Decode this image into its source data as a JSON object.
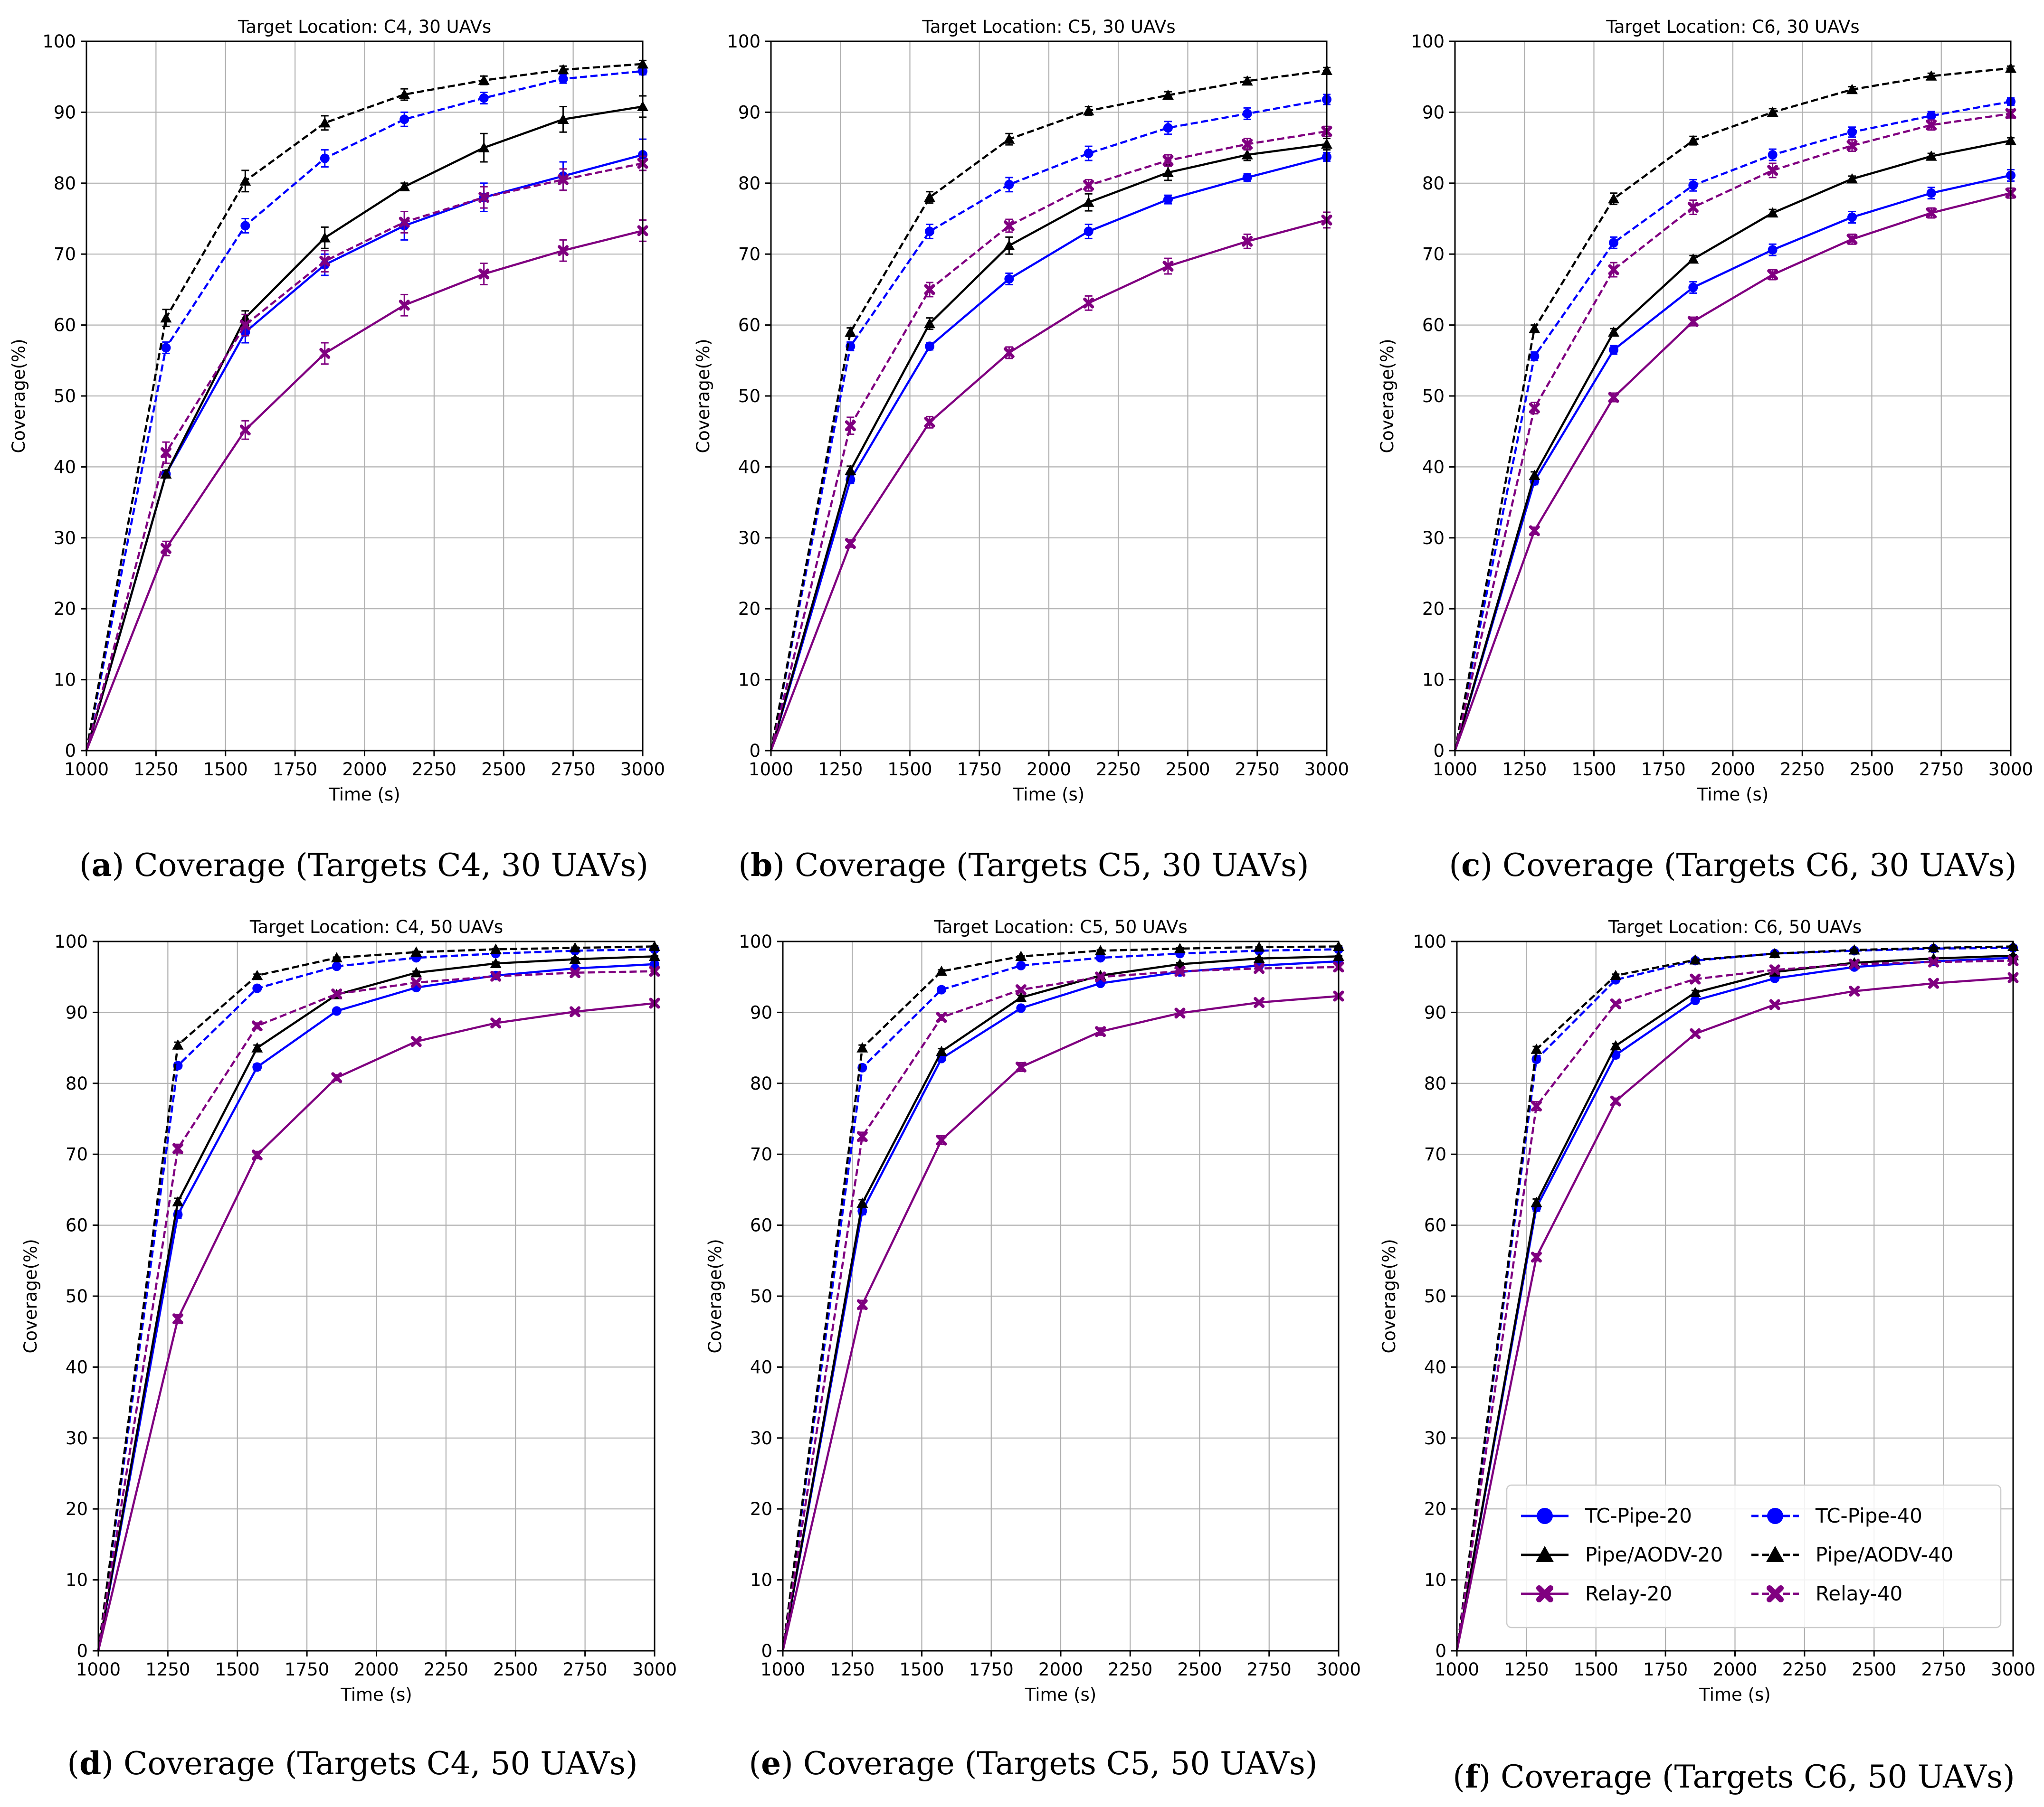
{
  "figure": {
    "legend_panel": 5,
    "panels": [
      {
        "label": "a",
        "caption_text": "Coverage (Targets C4, 30 UAVs)"
      },
      {
        "label": "b",
        "caption_text": "Coverage (Targets C5, 30 UAVs)"
      },
      {
        "label": "c",
        "caption_text": "Coverage (Targets C6, 30 UAVs)"
      },
      {
        "label": "d",
        "caption_text": "Coverage (Targets C4, 50 UAVs)"
      },
      {
        "label": "e",
        "caption_text": "Coverage (Targets C5, 50 UAVs)"
      },
      {
        "label": "f",
        "caption_text": "Coverage (Targets C6, 50 UAVs)"
      }
    ],
    "legend": [
      {
        "name": "TC-Pipe-20",
        "color": "#0000ff",
        "dash": "solid",
        "marker": "circle"
      },
      {
        "name": "TC-Pipe-40",
        "color": "#0000ff",
        "dash": "dashed",
        "marker": "circle"
      },
      {
        "name": "Pipe/AODV-20",
        "color": "#000000",
        "dash": "solid",
        "marker": "triangle"
      },
      {
        "name": "Pipe/AODV-40",
        "color": "#000000",
        "dash": "dashed",
        "marker": "triangle"
      },
      {
        "name": "Relay-20",
        "color": "#800080",
        "dash": "solid",
        "marker": "x"
      },
      {
        "name": "Relay-40",
        "color": "#800080",
        "dash": "dashed",
        "marker": "x"
      }
    ]
  },
  "chart_data": [
    {
      "type": "line",
      "title": "Target Location: C4, 30 UAVs",
      "xlabel": "Time (s)",
      "ylabel": "Coverage(%)",
      "xlim": [
        1000,
        3000
      ],
      "ylim": [
        0,
        100
      ],
      "xticks": [
        1000,
        1250,
        1500,
        1750,
        2000,
        2250,
        2500,
        2750,
        3000
      ],
      "yticks": [
        0,
        10,
        20,
        30,
        40,
        50,
        60,
        70,
        80,
        90,
        100
      ],
      "grid": true,
      "x": [
        1000,
        1286,
        1571,
        1857,
        2143,
        2429,
        2714,
        3000
      ],
      "series": [
        {
          "name": "TC-Pipe-20",
          "values": [
            0,
            39,
            59,
            68.5,
            74,
            78,
            81,
            84
          ],
          "err": [
            0,
            0.5,
            1.5,
            1.5,
            2,
            2,
            2,
            2.2
          ]
        },
        {
          "name": "TC-Pipe-40",
          "values": [
            0,
            56.8,
            74,
            83.5,
            89,
            92,
            94.7,
            95.8
          ],
          "err": [
            0,
            0.8,
            1,
            1.2,
            1,
            0.8,
            0.6,
            0.5
          ]
        },
        {
          "name": "Pipe/AODV-20",
          "values": [
            0,
            39,
            61,
            72.3,
            79.5,
            85,
            89,
            90.8
          ],
          "err": [
            0,
            0.5,
            1,
            1.5,
            0.5,
            2,
            1.8,
            1.5
          ]
        },
        {
          "name": "Pipe/AODV-40",
          "values": [
            0,
            61,
            80.3,
            88.5,
            92.5,
            94.5,
            96,
            96.8
          ],
          "err": [
            0,
            1.2,
            1.5,
            1,
            0.8,
            0.6,
            0.5,
            0.5
          ]
        },
        {
          "name": "Relay-20",
          "values": [
            0,
            28.5,
            45.2,
            56,
            62.8,
            67.2,
            70.5,
            73.3
          ],
          "err": [
            0,
            1,
            1.3,
            1.5,
            1.5,
            1.5,
            1.5,
            1.5
          ]
        },
        {
          "name": "Relay-40",
          "values": [
            0,
            42,
            60,
            69,
            74.5,
            78,
            80.5,
            82.8
          ],
          "err": [
            0,
            1.5,
            1.5,
            1.5,
            1.5,
            1.5,
            1.5,
            1
          ]
        }
      ]
    },
    {
      "type": "line",
      "title": "Target Location: C5, 30 UAVs",
      "xlabel": "Time (s)",
      "ylabel": "Coverage(%)",
      "xlim": [
        1000,
        3000
      ],
      "ylim": [
        0,
        100
      ],
      "xticks": [
        1000,
        1250,
        1500,
        1750,
        2000,
        2250,
        2500,
        2750,
        3000
      ],
      "yticks": [
        0,
        10,
        20,
        30,
        40,
        50,
        60,
        70,
        80,
        90,
        100
      ],
      "grid": true,
      "x": [
        1000,
        1286,
        1571,
        1857,
        2143,
        2429,
        2714,
        3000
      ],
      "series": [
        {
          "name": "TC-Pipe-20",
          "values": [
            0,
            38.2,
            57,
            66.5,
            73.2,
            77.7,
            80.8,
            83.7
          ],
          "err": [
            0,
            0.5,
            0.5,
            0.8,
            1,
            0.6,
            0.5,
            0.6
          ]
        },
        {
          "name": "TC-Pipe-40",
          "values": [
            0,
            57,
            73.2,
            79.8,
            84.2,
            87.8,
            89.8,
            91.8
          ],
          "err": [
            0,
            0.6,
            1,
            1,
            1,
            0.9,
            0.8,
            0.7
          ]
        },
        {
          "name": "Pipe/AODV-20",
          "values": [
            0,
            39.5,
            60.2,
            71.2,
            77.3,
            81.5,
            84,
            85.5
          ],
          "err": [
            0,
            0.6,
            0.8,
            1.2,
            1.2,
            1.1,
            0.8,
            0.8
          ]
        },
        {
          "name": "Pipe/AODV-40",
          "values": [
            0,
            59,
            78,
            86.2,
            90.2,
            92.4,
            94.4,
            95.9
          ],
          "err": [
            0,
            0.6,
            0.8,
            0.8,
            0.6,
            0.5,
            0.5,
            0.4
          ]
        },
        {
          "name": "Relay-20",
          "values": [
            0,
            29.2,
            46.3,
            56.1,
            63.1,
            68.3,
            71.8,
            74.8
          ],
          "err": [
            0,
            0.5,
            0.8,
            0.8,
            1,
            1.1,
            1,
            1.1
          ]
        },
        {
          "name": "Relay-40",
          "values": [
            0,
            45.8,
            65,
            74,
            79.7,
            83.2,
            85.5,
            87.3
          ],
          "err": [
            0,
            1.2,
            1,
            0.9,
            0.8,
            0.8,
            0.8,
            0.7
          ]
        }
      ]
    },
    {
      "type": "line",
      "title": "Target Location: C6, 30 UAVs",
      "xlabel": "Time (s)",
      "ylabel": "Coverage(%)",
      "xlim": [
        1000,
        3000
      ],
      "ylim": [
        0,
        100
      ],
      "xticks": [
        1000,
        1250,
        1500,
        1750,
        2000,
        2250,
        2500,
        2750,
        3000
      ],
      "yticks": [
        0,
        10,
        20,
        30,
        40,
        50,
        60,
        70,
        80,
        90,
        100
      ],
      "grid": true,
      "x": [
        1000,
        1286,
        1571,
        1857,
        2143,
        2429,
        2714,
        3000
      ],
      "series": [
        {
          "name": "TC-Pipe-20",
          "values": [
            0,
            38,
            56.5,
            65.3,
            70.6,
            75.2,
            78.6,
            81.1
          ],
          "err": [
            0,
            0.5,
            0.6,
            0.8,
            0.8,
            0.8,
            0.8,
            0.8
          ]
        },
        {
          "name": "TC-Pipe-40",
          "values": [
            0,
            55.6,
            71.6,
            79.7,
            84,
            87.2,
            89.5,
            91.5
          ],
          "err": [
            0,
            0.6,
            0.8,
            0.8,
            0.8,
            0.7,
            0.6,
            0.5
          ]
        },
        {
          "name": "Pipe/AODV-20",
          "values": [
            0,
            38.8,
            59,
            69.3,
            75.8,
            80.6,
            83.8,
            86
          ],
          "err": [
            0,
            0.5,
            0.5,
            0.5,
            0.5,
            0.4,
            0.4,
            0.4
          ]
        },
        {
          "name": "Pipe/AODV-40",
          "values": [
            0,
            59.5,
            77.8,
            86,
            90,
            93.2,
            95.1,
            96.2
          ],
          "err": [
            0,
            0.5,
            0.8,
            0.6,
            0.5,
            0.4,
            0.4,
            0.3
          ]
        },
        {
          "name": "Relay-20",
          "values": [
            0,
            31,
            49.8,
            60.5,
            67.1,
            72.1,
            75.8,
            78.6
          ],
          "err": [
            0,
            0.5,
            0.6,
            0.6,
            0.7,
            0.7,
            0.7,
            0.7
          ]
        },
        {
          "name": "Relay-40",
          "values": [
            0,
            48.3,
            67.8,
            76.6,
            81.8,
            85.3,
            88.2,
            89.8
          ],
          "err": [
            0,
            0.8,
            1,
            1,
            1,
            0.8,
            0.7,
            0.6
          ]
        }
      ]
    },
    {
      "type": "line",
      "title": "Target Location: C4, 50 UAVs",
      "xlabel": "Time (s)",
      "ylabel": "Coverage(%)",
      "xlim": [
        1000,
        3000
      ],
      "ylim": [
        0,
        100
      ],
      "xticks": [
        1000,
        1250,
        1500,
        1750,
        2000,
        2250,
        2500,
        2750,
        3000
      ],
      "yticks": [
        0,
        10,
        20,
        30,
        40,
        50,
        60,
        70,
        80,
        90,
        100
      ],
      "grid": true,
      "x": [
        1000,
        1286,
        1571,
        1857,
        2143,
        2429,
        2714,
        3000
      ],
      "series": [
        {
          "name": "TC-Pipe-20",
          "values": [
            0,
            61.5,
            82.3,
            90.2,
            93.5,
            95.2,
            96.2,
            96.8
          ],
          "err": [
            0,
            0.5,
            0.4,
            0.3,
            0.2,
            0.2,
            0.2,
            0.2
          ]
        },
        {
          "name": "TC-Pipe-40",
          "values": [
            0,
            82.5,
            93.4,
            96.5,
            97.7,
            98.3,
            98.7,
            98.9
          ],
          "err": [
            0,
            0.4,
            0.2,
            0.2,
            0.1,
            0.1,
            0.1,
            0.1
          ]
        },
        {
          "name": "Pipe/AODV-20",
          "values": [
            0,
            63.3,
            85,
            92.5,
            95.6,
            96.9,
            97.5,
            97.9
          ],
          "err": [
            0,
            0.5,
            0.4,
            0.3,
            0.2,
            0.2,
            0.2,
            0.1
          ]
        },
        {
          "name": "Pipe/AODV-40",
          "values": [
            0,
            85.4,
            95.2,
            97.7,
            98.5,
            98.9,
            99.1,
            99.3
          ],
          "err": [
            0,
            0.4,
            0.2,
            0.1,
            0.1,
            0.1,
            0.1,
            0.1
          ]
        },
        {
          "name": "Relay-20",
          "values": [
            0,
            46.8,
            69.9,
            80.8,
            85.9,
            88.5,
            90.1,
            91.3
          ],
          "err": [
            0,
            0.6,
            0.5,
            0.4,
            0.3,
            0.3,
            0.2,
            0.2
          ]
        },
        {
          "name": "Relay-40",
          "values": [
            0,
            70.8,
            88.1,
            92.6,
            94.2,
            95.1,
            95.6,
            95.8
          ],
          "err": [
            0,
            0.6,
            0.4,
            0.3,
            0.2,
            0.2,
            0.2,
            0.2
          ]
        }
      ]
    },
    {
      "type": "line",
      "title": "Target Location: C5, 50 UAVs",
      "xlabel": "Time (s)",
      "ylabel": "Coverage(%)",
      "xlim": [
        1000,
        3000
      ],
      "ylim": [
        0,
        100
      ],
      "xticks": [
        1000,
        1250,
        1500,
        1750,
        2000,
        2250,
        2500,
        2750,
        3000
      ],
      "yticks": [
        0,
        10,
        20,
        30,
        40,
        50,
        60,
        70,
        80,
        90,
        100
      ],
      "grid": true,
      "x": [
        1000,
        1286,
        1571,
        1857,
        2143,
        2429,
        2714,
        3000
      ],
      "series": [
        {
          "name": "TC-Pipe-20",
          "values": [
            0,
            62,
            83.5,
            90.6,
            94.1,
            95.7,
            96.6,
            97.2
          ],
          "err": [
            0,
            0.5,
            0.4,
            0.3,
            0.2,
            0.2,
            0.2,
            0.1
          ]
        },
        {
          "name": "TC-Pipe-40",
          "values": [
            0,
            82.2,
            93.2,
            96.6,
            97.7,
            98.3,
            98.7,
            98.9
          ],
          "err": [
            0,
            0.4,
            0.2,
            0.2,
            0.1,
            0.1,
            0.1,
            0.1
          ]
        },
        {
          "name": "Pipe/AODV-20",
          "values": [
            0,
            63.1,
            84.5,
            92.1,
            95.2,
            96.8,
            97.6,
            97.9
          ],
          "err": [
            0,
            0.5,
            0.4,
            0.3,
            0.2,
            0.2,
            0.1,
            0.1
          ]
        },
        {
          "name": "Pipe/AODV-40",
          "values": [
            0,
            85,
            95.8,
            97.9,
            98.7,
            99,
            99.2,
            99.3
          ],
          "err": [
            0,
            0.4,
            0.2,
            0.1,
            0.1,
            0.1,
            0.1,
            0.1
          ]
        },
        {
          "name": "Relay-20",
          "values": [
            0,
            48.8,
            72,
            82.3,
            87.3,
            89.9,
            91.4,
            92.3
          ],
          "err": [
            0,
            0.6,
            0.6,
            0.6,
            0.5,
            0.3,
            0.3,
            0.2
          ]
        },
        {
          "name": "Relay-40",
          "values": [
            0,
            72.5,
            89.3,
            93.2,
            95,
            95.8,
            96.2,
            96.4
          ],
          "err": [
            0,
            0.6,
            0.4,
            0.3,
            0.2,
            0.2,
            0.2,
            0.2
          ]
        }
      ]
    },
    {
      "type": "line",
      "title": "Target Location: C6, 50 UAVs",
      "xlabel": "Time (s)",
      "ylabel": "Coverage(%)",
      "xlim": [
        1000,
        3000
      ],
      "ylim": [
        0,
        100
      ],
      "xticks": [
        1000,
        1250,
        1500,
        1750,
        2000,
        2250,
        2500,
        2750,
        3000
      ],
      "yticks": [
        0,
        10,
        20,
        30,
        40,
        50,
        60,
        70,
        80,
        90,
        100
      ],
      "grid": true,
      "legend_position": "lower-right",
      "x": [
        1000,
        1286,
        1571,
        1857,
        2143,
        2429,
        2714,
        3000
      ],
      "series": [
        {
          "name": "TC-Pipe-20",
          "values": [
            0,
            62.5,
            84,
            91.7,
            94.8,
            96.4,
            97.2,
            97.7
          ],
          "err": [
            0,
            0.5,
            0.4,
            0.3,
            0.2,
            0.2,
            0.1,
            0.1
          ]
        },
        {
          "name": "TC-Pipe-40",
          "values": [
            0,
            83.4,
            94.6,
            97.3,
            98.3,
            98.7,
            99,
            99.1
          ],
          "err": [
            0,
            0.4,
            0.2,
            0.1,
            0.1,
            0.1,
            0.1,
            0.1
          ]
        },
        {
          "name": "Pipe/AODV-20",
          "values": [
            0,
            63.2,
            85.3,
            92.8,
            95.7,
            97,
            97.6,
            98
          ],
          "err": [
            0,
            0.5,
            0.3,
            0.3,
            0.2,
            0.1,
            0.1,
            0.1
          ]
        },
        {
          "name": "Pipe/AODV-40",
          "values": [
            0,
            84.8,
            95.2,
            97.4,
            98.3,
            98.8,
            99.1,
            99.3
          ],
          "err": [
            0,
            0.4,
            0.2,
            0.1,
            0.1,
            0.1,
            0.1,
            0.1
          ]
        },
        {
          "name": "Relay-20",
          "values": [
            0,
            55.5,
            77.5,
            87,
            91.1,
            93,
            94.1,
            94.9
          ],
          "err": [
            0,
            0.5,
            0.4,
            0.3,
            0.2,
            0.2,
            0.2,
            0.2
          ]
        },
        {
          "name": "Relay-40",
          "values": [
            0,
            76.8,
            91.2,
            94.7,
            96,
            96.8,
            97.1,
            97.3
          ],
          "err": [
            0,
            0.6,
            0.3,
            0.2,
            0.2,
            0.1,
            0.1,
            0.1
          ]
        }
      ]
    }
  ]
}
